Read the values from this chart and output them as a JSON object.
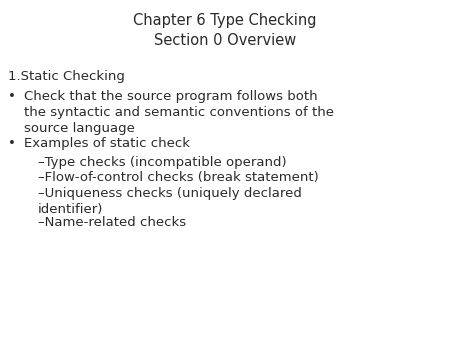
{
  "title_line1": "Chapter 6 Type Checking",
  "title_line2": "Section 0 Overview",
  "background_color": "#ffffff",
  "text_color": "#2a2a2a",
  "title_fontsize": 10.5,
  "body_fontsize": 9.5,
  "numbered_fontsize": 9.5,
  "font_family": "DejaVu Sans",
  "numbered_item": "1.Static Checking",
  "content": [
    {
      "type": "bullet1",
      "text": "Check that the source program follows both\nthe syntactic and semantic conventions of the\nsource language"
    },
    {
      "type": "bullet1",
      "text": "Examples of static check"
    },
    {
      "type": "bullet2",
      "text": "–Type checks (incompatible operand)"
    },
    {
      "type": "bullet2",
      "text": "–Flow-of-control checks (break statement)"
    },
    {
      "type": "bullet2",
      "text": "–Uniqueness checks (uniquely declared\nidentifier)"
    },
    {
      "type": "bullet2",
      "text": "–Name-related checks"
    }
  ],
  "fig_width": 4.5,
  "fig_height": 3.38,
  "dpi": 100
}
